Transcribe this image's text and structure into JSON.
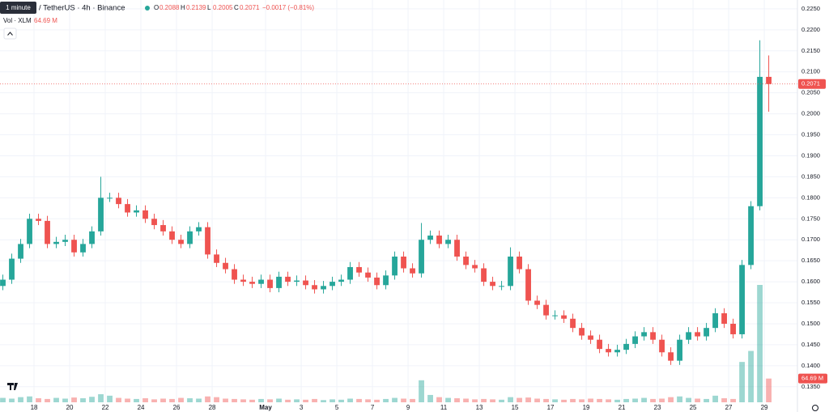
{
  "header": {
    "tooltip": "1 minute",
    "symbol": "/ TetherUS · 4h · Binance",
    "ohlc": [
      {
        "key": "O",
        "value": "0.2088"
      },
      {
        "key": "H",
        "value": "0.2139"
      },
      {
        "key": "L",
        "value": "0.2005"
      },
      {
        "key": "C",
        "value": "0.2071"
      }
    ],
    "change": "−0.0017 (−0.81%)",
    "volume_title": "Vol · XLM",
    "volume_value": "64.69 M"
  },
  "chart_data": {
    "type": "candlestick",
    "up_color": "#26a69a",
    "down_color": "#ef5350",
    "grid": true,
    "xlim": [
      0.09,
      44.86
    ],
    "ylim": [
      0.1313,
      0.2271
    ],
    "xticks": [
      {
        "value": 2,
        "label": "18"
      },
      {
        "value": 4,
        "label": "20"
      },
      {
        "value": 6,
        "label": "22"
      },
      {
        "value": 8,
        "label": "24"
      },
      {
        "value": 10,
        "label": "26"
      },
      {
        "value": 12,
        "label": "28"
      },
      {
        "value": 15,
        "label": "May"
      },
      {
        "value": 17,
        "label": "3"
      },
      {
        "value": 19,
        "label": "5"
      },
      {
        "value": 21,
        "label": "7"
      },
      {
        "value": 23,
        "label": "9"
      },
      {
        "value": 25,
        "label": "11"
      },
      {
        "value": 27,
        "label": "13"
      },
      {
        "value": 29,
        "label": "15"
      },
      {
        "value": 31,
        "label": "17"
      },
      {
        "value": 33,
        "label": "19"
      },
      {
        "value": 35,
        "label": "21"
      },
      {
        "value": 37,
        "label": "23"
      },
      {
        "value": 39,
        "label": "25"
      },
      {
        "value": 41,
        "label": "27"
      },
      {
        "value": 43,
        "label": "29"
      }
    ],
    "yticks": [
      {
        "value": 0.135,
        "label": "0.1350"
      },
      {
        "value": 0.14,
        "label": "0.1400"
      },
      {
        "value": 0.145,
        "label": "0.1450"
      },
      {
        "value": 0.15,
        "label": "0.1500"
      },
      {
        "value": 0.155,
        "label": "0.1550"
      },
      {
        "value": 0.16,
        "label": "0.1600"
      },
      {
        "value": 0.165,
        "label": "0.1650"
      },
      {
        "value": 0.17,
        "label": "0.1700"
      },
      {
        "value": 0.175,
        "label": "0.1750"
      },
      {
        "value": 0.18,
        "label": "0.1800"
      },
      {
        "value": 0.185,
        "label": "0.1850"
      },
      {
        "value": 0.19,
        "label": "0.1900"
      },
      {
        "value": 0.195,
        "label": "0.1950"
      },
      {
        "value": 0.2,
        "label": "0.2000"
      },
      {
        "value": 0.205,
        "label": "0.2050"
      },
      {
        "value": 0.21,
        "label": "0.2100"
      },
      {
        "value": 0.215,
        "label": "0.2150"
      },
      {
        "value": 0.22,
        "label": "0.2200"
      },
      {
        "value": 0.225,
        "label": "0.2250"
      }
    ],
    "last_price": {
      "value": 0.2071,
      "label": "0.2071"
    },
    "x": [
      0.25,
      0.75,
      1.25,
      1.75,
      2.25,
      2.75,
      3.25,
      3.75,
      4.25,
      4.75,
      5.25,
      5.75,
      6.25,
      6.75,
      7.25,
      7.75,
      8.25,
      8.75,
      9.25,
      9.75,
      10.25,
      10.75,
      11.25,
      11.75,
      12.25,
      12.75,
      13.25,
      13.75,
      14.25,
      14.75,
      15.25,
      15.75,
      16.25,
      16.75,
      17.25,
      17.75,
      18.25,
      18.75,
      19.25,
      19.75,
      20.25,
      20.75,
      21.25,
      21.75,
      22.25,
      22.75,
      23.25,
      23.75,
      24.25,
      24.75,
      25.25,
      25.75,
      26.25,
      26.75,
      27.25,
      27.75,
      28.25,
      28.75,
      29.25,
      29.75,
      30.25,
      30.75,
      31.25,
      31.75,
      32.25,
      32.75,
      33.25,
      33.75,
      34.25,
      34.75,
      35.25,
      35.75,
      36.25,
      36.75,
      37.25,
      37.75,
      38.25,
      38.75,
      39.25,
      39.75,
      40.25,
      40.75,
      41.25,
      41.75,
      42.25,
      42.75,
      43.25
    ],
    "open": [
      0.159,
      0.1605,
      0.1655,
      0.169,
      0.175,
      0.1745,
      0.169,
      0.1695,
      0.17,
      0.167,
      0.169,
      0.172,
      0.18,
      0.18,
      0.1785,
      0.1765,
      0.177,
      0.175,
      0.1735,
      0.172,
      0.17,
      0.169,
      0.172,
      0.173,
      0.1665,
      0.1645,
      0.163,
      0.1605,
      0.16,
      0.1595,
      0.1605,
      0.1585,
      0.1612,
      0.16,
      0.1603,
      0.1592,
      0.1582,
      0.159,
      0.16,
      0.1605,
      0.1635,
      0.1622,
      0.161,
      0.1592,
      0.1615,
      0.166,
      0.1632,
      0.162,
      0.17,
      0.171,
      0.169,
      0.17,
      0.166,
      0.164,
      0.1632,
      0.16,
      0.159,
      0.159,
      0.166,
      0.163,
      0.1555,
      0.1545,
      0.152,
      0.152,
      0.1512,
      0.149,
      0.1472,
      0.1462,
      0.144,
      0.1432,
      0.1438,
      0.1452,
      0.147,
      0.148,
      0.1462,
      0.1432,
      0.1412,
      0.1462,
      0.148,
      0.147,
      0.149,
      0.1525,
      0.15,
      0.1475,
      0.164,
      0.178,
      0.2088
    ],
    "high": [
      0.1617,
      0.1667,
      0.1702,
      0.1762,
      0.1762,
      0.1757,
      0.1707,
      0.1712,
      0.1712,
      0.1702,
      0.1732,
      0.185,
      0.1812,
      0.1812,
      0.1797,
      0.1782,
      0.1782,
      0.1762,
      0.1747,
      0.1732,
      0.1712,
      0.1732,
      0.1742,
      0.1742,
      0.1677,
      0.1657,
      0.1642,
      0.1617,
      0.1612,
      0.1617,
      0.1617,
      0.1624,
      0.1624,
      0.1615,
      0.1615,
      0.1604,
      0.1602,
      0.1612,
      0.1617,
      0.1647,
      0.1647,
      0.1634,
      0.1622,
      0.1627,
      0.1672,
      0.1672,
      0.1644,
      0.174,
      0.1722,
      0.1722,
      0.1712,
      0.1712,
      0.1672,
      0.1652,
      0.1644,
      0.1612,
      0.1602,
      0.1682,
      0.1672,
      0.1642,
      0.1567,
      0.1557,
      0.1532,
      0.1532,
      0.1524,
      0.1502,
      0.1484,
      0.1474,
      0.1452,
      0.145,
      0.1464,
      0.1482,
      0.1492,
      0.1492,
      0.1474,
      0.1444,
      0.1474,
      0.1492,
      0.1492,
      0.1502,
      0.1537,
      0.1537,
      0.1512,
      0.1652,
      0.1792,
      0.2175,
      0.2139
    ],
    "low": [
      0.158,
      0.1595,
      0.1645,
      0.168,
      0.1735,
      0.168,
      0.168,
      0.1685,
      0.166,
      0.166,
      0.168,
      0.171,
      0.179,
      0.1775,
      0.1755,
      0.1755,
      0.174,
      0.1725,
      0.171,
      0.169,
      0.168,
      0.168,
      0.171,
      0.1655,
      0.1635,
      0.162,
      0.1595,
      0.159,
      0.1585,
      0.1585,
      0.1575,
      0.1575,
      0.159,
      0.159,
      0.1582,
      0.1572,
      0.1572,
      0.158,
      0.159,
      0.1595,
      0.1612,
      0.16,
      0.1582,
      0.1582,
      0.1605,
      0.1622,
      0.161,
      0.161,
      0.169,
      0.168,
      0.168,
      0.165,
      0.163,
      0.1622,
      0.159,
      0.158,
      0.158,
      0.158,
      0.162,
      0.1545,
      0.1535,
      0.151,
      0.151,
      0.1502,
      0.148,
      0.1462,
      0.1452,
      0.143,
      0.1422,
      0.1422,
      0.1428,
      0.1442,
      0.146,
      0.1452,
      0.1422,
      0.1402,
      0.1402,
      0.1452,
      0.146,
      0.146,
      0.148,
      0.149,
      0.1465,
      0.1465,
      0.163,
      0.177,
      0.2005
    ],
    "close": [
      0.1605,
      0.1655,
      0.169,
      0.175,
      0.1745,
      0.169,
      0.1695,
      0.17,
      0.167,
      0.169,
      0.172,
      0.18,
      0.18,
      0.1785,
      0.1765,
      0.177,
      0.175,
      0.1735,
      0.172,
      0.17,
      0.169,
      0.172,
      0.173,
      0.1665,
      0.1645,
      0.163,
      0.1605,
      0.16,
      0.1595,
      0.1605,
      0.1585,
      0.1612,
      0.16,
      0.1603,
      0.1592,
      0.1582,
      0.159,
      0.16,
      0.1605,
      0.1635,
      0.1622,
      0.161,
      0.1592,
      0.1615,
      0.166,
      0.1632,
      0.162,
      0.17,
      0.171,
      0.169,
      0.17,
      0.166,
      0.164,
      0.1632,
      0.16,
      0.159,
      0.159,
      0.166,
      0.163,
      0.1555,
      0.1545,
      0.152,
      0.152,
      0.1512,
      0.149,
      0.1472,
      0.1462,
      0.144,
      0.1432,
      0.1438,
      0.1452,
      0.147,
      0.148,
      0.1462,
      0.1432,
      0.1412,
      0.1462,
      0.148,
      0.147,
      0.149,
      0.1525,
      0.15,
      0.1475,
      0.164,
      0.178,
      0.2088,
      0.2071
    ],
    "volume": [
      12,
      10,
      14,
      16,
      11,
      9,
      12,
      10,
      13,
      11,
      15,
      22,
      18,
      12,
      10,
      9,
      11,
      8,
      10,
      9,
      12,
      11,
      10,
      16,
      14,
      10,
      9,
      8,
      7,
      9,
      8,
      10,
      7,
      8,
      7,
      9,
      6,
      8,
      7,
      10,
      9,
      8,
      7,
      9,
      12,
      10,
      9,
      60,
      20,
      14,
      12,
      11,
      10,
      8,
      9,
      8,
      7,
      14,
      12,
      13,
      10,
      9,
      8,
      7,
      9,
      8,
      10,
      9,
      8,
      7,
      9,
      10,
      12,
      9,
      10,
      14,
      16,
      12,
      10,
      9,
      18,
      11,
      9,
      110,
      140,
      320,
      64.69
    ]
  }
}
